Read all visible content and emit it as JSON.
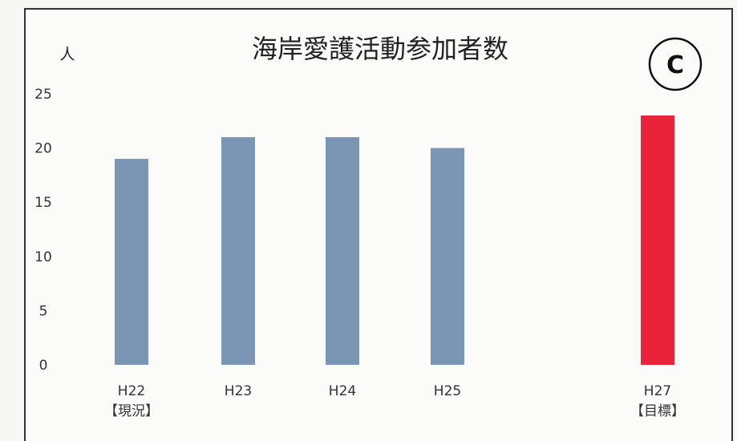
{
  "chart_data": {
    "type": "bar",
    "title": "海岸愛護活動参加者数",
    "ylabel": "人",
    "badge": "C",
    "ylim": [
      0,
      25
    ],
    "yticks": [
      0,
      5,
      10,
      15,
      20,
      25
    ],
    "categories": [
      {
        "label": "H22",
        "sublabel": "【現況】"
      },
      {
        "label": "H23",
        "sublabel": ""
      },
      {
        "label": "H24",
        "sublabel": ""
      },
      {
        "label": "H25",
        "sublabel": ""
      },
      {
        "label": "H27",
        "sublabel": "【目標】"
      }
    ],
    "values": [
      19,
      21,
      21,
      20,
      23
    ],
    "colors": [
      "#7b95b5",
      "#7b95b5",
      "#7b95b5",
      "#7b95b5",
      "#e8233a"
    ],
    "grid": false,
    "legend": "none"
  }
}
